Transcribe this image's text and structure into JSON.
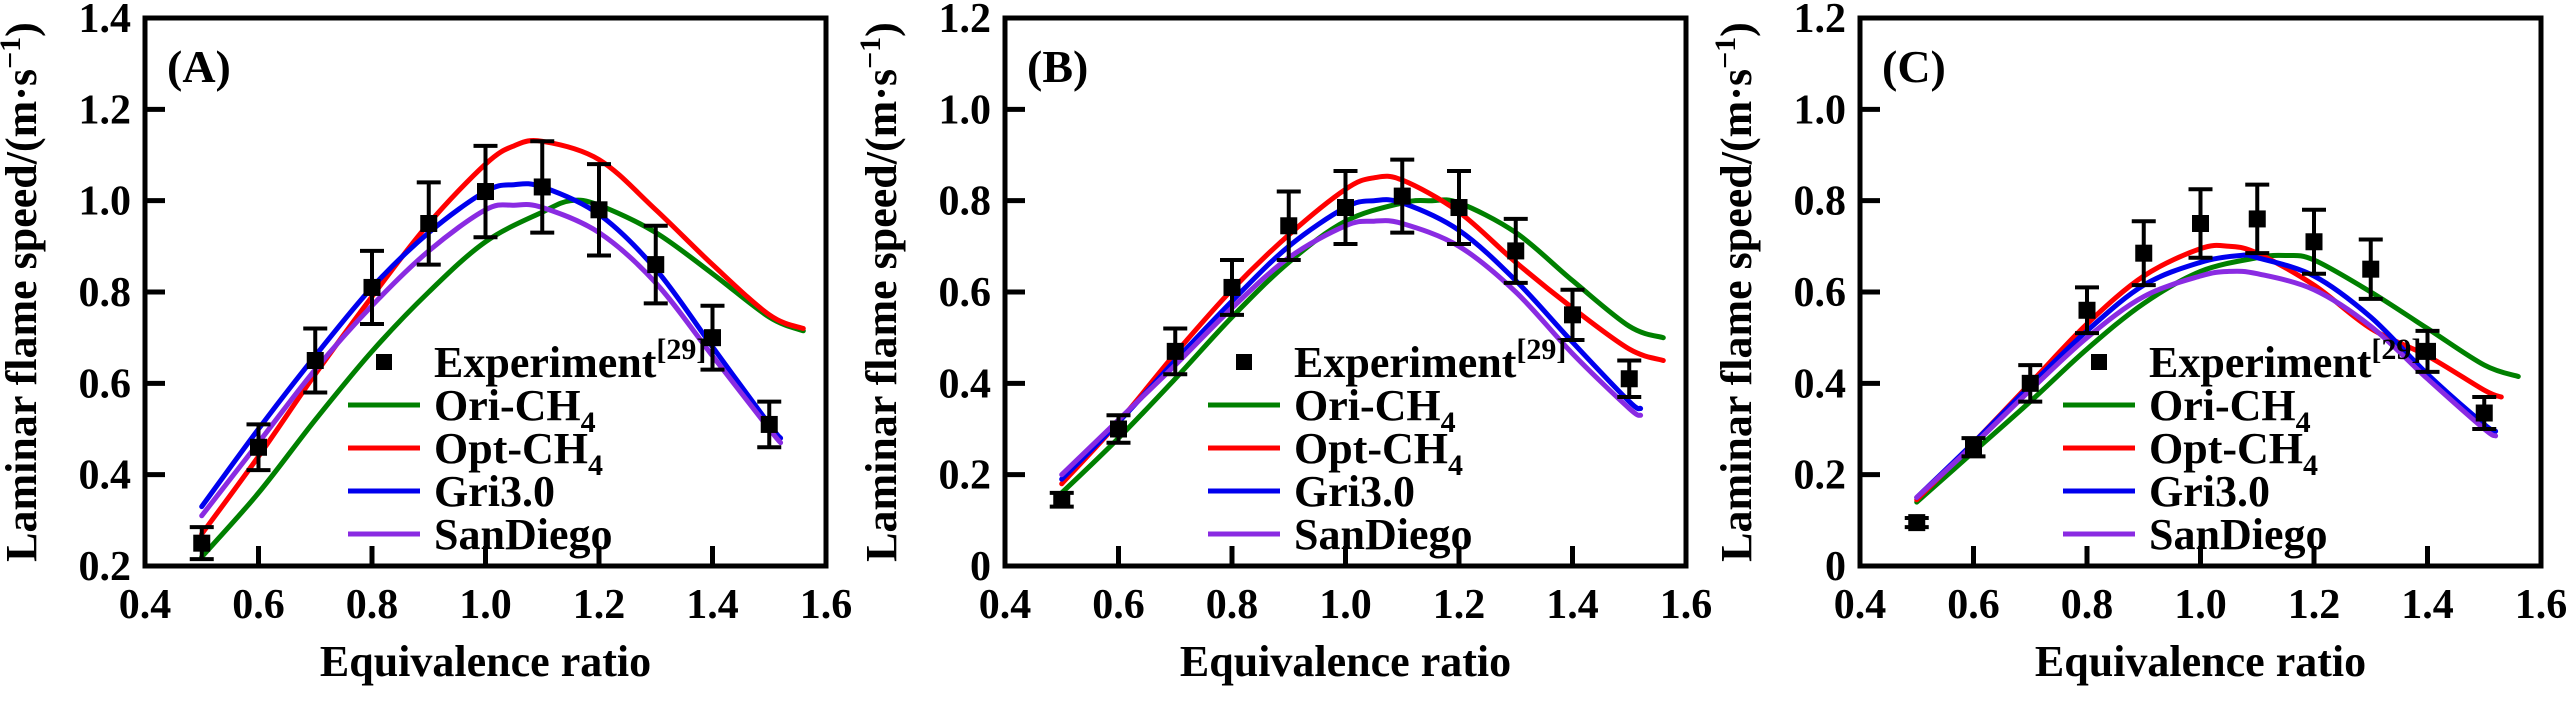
{
  "figure_title": "",
  "colors": {
    "experiment": "#000000",
    "ori": "#008000",
    "opt": "#ff0000",
    "gri": "#0000ee",
    "san": "#8a2be2",
    "axis": "#000000",
    "background": "#ffffff"
  },
  "chart_data": [
    {
      "type": "line",
      "panel_label": "(A)",
      "xlabel": "Equivalence ratio",
      "ylabel": "Laminar flame speed/(m·s⁻¹)",
      "ylabel_parts": {
        "base": "Laminar flame speed/(m·s",
        "sup": "−1",
        "end": ")"
      },
      "xlim": [
        0.4,
        1.6
      ],
      "ylim": [
        0.2,
        1.4
      ],
      "grid": false,
      "legend_position": "inside-lower-middle",
      "xticks": {
        "values": [
          0.4,
          0.6,
          0.8,
          1.0,
          1.2,
          1.4,
          1.6
        ],
        "labels": [
          "0.4",
          "0.6",
          "0.8",
          "1.0",
          "1.2",
          "1.4",
          "1.6"
        ]
      },
      "yticks": {
        "values": [
          0.2,
          0.4,
          0.6,
          0.8,
          1.0,
          1.2,
          1.4
        ],
        "labels": [
          "0.2",
          "0.4",
          "0.6",
          "0.8",
          "1.0",
          "1.2",
          "1.4"
        ]
      },
      "experiment": {
        "name": "Experiment",
        "ref_sup": "[29]",
        "x": [
          0.5,
          0.6,
          0.7,
          0.8,
          0.9,
          1.0,
          1.1,
          1.2,
          1.3,
          1.4,
          1.5
        ],
        "y": [
          0.25,
          0.46,
          0.65,
          0.81,
          0.95,
          1.02,
          1.03,
          0.98,
          0.86,
          0.7,
          0.51
        ],
        "yerr": [
          0.035,
          0.05,
          0.07,
          0.08,
          0.09,
          0.1,
          0.1,
          0.1,
          0.085,
          0.07,
          0.05
        ]
      },
      "series": [
        {
          "id": "ori",
          "name": "Ori-CH4",
          "color": "#008000",
          "x": [
            0.5,
            0.6,
            0.7,
            0.8,
            0.9,
            1.0,
            1.1,
            1.15,
            1.2,
            1.3,
            1.4,
            1.5,
            1.56
          ],
          "y": [
            0.22,
            0.36,
            0.52,
            0.67,
            0.8,
            0.91,
            0.975,
            1.0,
            0.99,
            0.93,
            0.84,
            0.745,
            0.715
          ]
        },
        {
          "id": "opt",
          "name": "Opt-CH4",
          "color": "#ff0000",
          "x": [
            0.5,
            0.6,
            0.7,
            0.8,
            0.9,
            1.0,
            1.05,
            1.1,
            1.2,
            1.3,
            1.4,
            1.5,
            1.56
          ],
          "y": [
            0.27,
            0.44,
            0.62,
            0.79,
            0.95,
            1.08,
            1.12,
            1.13,
            1.09,
            0.98,
            0.86,
            0.75,
            0.72
          ]
        },
        {
          "id": "gri",
          "name": "Gri3.0",
          "color": "#0000ee",
          "x": [
            0.5,
            0.6,
            0.7,
            0.8,
            0.9,
            1.0,
            1.05,
            1.1,
            1.2,
            1.3,
            1.4,
            1.5,
            1.52
          ],
          "y": [
            0.33,
            0.5,
            0.66,
            0.81,
            0.93,
            1.02,
            1.035,
            1.03,
            0.97,
            0.85,
            0.68,
            0.51,
            0.48
          ]
        },
        {
          "id": "san",
          "name": "SanDiego",
          "color": "#8a2be2",
          "x": [
            0.5,
            0.6,
            0.7,
            0.8,
            0.9,
            1.0,
            1.05,
            1.1,
            1.2,
            1.3,
            1.4,
            1.5,
            1.52
          ],
          "y": [
            0.31,
            0.47,
            0.63,
            0.77,
            0.89,
            0.98,
            0.99,
            0.985,
            0.93,
            0.82,
            0.66,
            0.5,
            0.47
          ]
        }
      ],
      "legend": [
        {
          "swatch": "square",
          "color": "#000000",
          "base": "Experiment",
          "sup": "[29]"
        },
        {
          "swatch": "line",
          "color": "#008000",
          "base": "Ori-CH",
          "sub": "4"
        },
        {
          "swatch": "line",
          "color": "#ff0000",
          "base": "Opt-CH",
          "sub": "4"
        },
        {
          "swatch": "line",
          "color": "#0000ee",
          "base": "Gri3.0"
        },
        {
          "swatch": "line",
          "color": "#8a2be2",
          "base": "SanDiego"
        }
      ]
    },
    {
      "type": "line",
      "panel_label": "(B)",
      "xlabel": "Equivalence ratio",
      "ylabel": "Laminar flame speed/(m·s⁻¹)",
      "ylabel_parts": {
        "base": "Laminar flame speed/(m·s",
        "sup": "−1",
        "end": ")"
      },
      "xlim": [
        0.4,
        1.6
      ],
      "ylim": [
        0,
        1.2
      ],
      "grid": false,
      "legend_position": "inside-lower-middle",
      "xticks": {
        "values": [
          0.4,
          0.6,
          0.8,
          1.0,
          1.2,
          1.4,
          1.6
        ],
        "labels": [
          "0.4",
          "0.6",
          "0.8",
          "1.0",
          "1.2",
          "1.4",
          "1.6"
        ]
      },
      "yticks": {
        "values": [
          0,
          0.2,
          0.4,
          0.6,
          0.8,
          1.0,
          1.2
        ],
        "labels": [
          "0",
          "0.2",
          "0.4",
          "0.6",
          "0.8",
          "1.0",
          "1.2"
        ]
      },
      "experiment": {
        "name": "Experiment",
        "ref_sup": "[29]",
        "x": [
          0.5,
          0.6,
          0.7,
          0.8,
          0.9,
          1.0,
          1.1,
          1.2,
          1.3,
          1.4,
          1.5
        ],
        "y": [
          0.145,
          0.3,
          0.47,
          0.61,
          0.745,
          0.785,
          0.81,
          0.785,
          0.69,
          0.55,
          0.41
        ],
        "yerr": [
          0.015,
          0.03,
          0.05,
          0.06,
          0.075,
          0.08,
          0.08,
          0.08,
          0.07,
          0.055,
          0.04
        ]
      },
      "series": [
        {
          "id": "ori",
          "name": "Ori-CH4",
          "color": "#008000",
          "x": [
            0.5,
            0.6,
            0.7,
            0.8,
            0.9,
            1.0,
            1.1,
            1.15,
            1.2,
            1.3,
            1.4,
            1.5,
            1.56
          ],
          "y": [
            0.16,
            0.28,
            0.41,
            0.545,
            0.665,
            0.755,
            0.795,
            0.8,
            0.795,
            0.73,
            0.625,
            0.525,
            0.5
          ]
        },
        {
          "id": "opt",
          "name": "Opt-CH4",
          "color": "#ff0000",
          "x": [
            0.5,
            0.6,
            0.7,
            0.8,
            0.9,
            1.0,
            1.05,
            1.1,
            1.2,
            1.3,
            1.4,
            1.5,
            1.56
          ],
          "y": [
            0.18,
            0.315,
            0.465,
            0.605,
            0.725,
            0.825,
            0.85,
            0.845,
            0.775,
            0.665,
            0.565,
            0.475,
            0.45
          ]
        },
        {
          "id": "gri",
          "name": "Gri3.0",
          "color": "#0000ee",
          "x": [
            0.5,
            0.6,
            0.7,
            0.8,
            0.9,
            1.0,
            1.05,
            1.1,
            1.2,
            1.3,
            1.4,
            1.5,
            1.52
          ],
          "y": [
            0.19,
            0.315,
            0.45,
            0.58,
            0.7,
            0.785,
            0.8,
            0.795,
            0.735,
            0.625,
            0.49,
            0.36,
            0.345
          ]
        },
        {
          "id": "san",
          "name": "SanDiego",
          "color": "#8a2be2",
          "x": [
            0.5,
            0.6,
            0.7,
            0.8,
            0.9,
            1.0,
            1.05,
            1.1,
            1.2,
            1.3,
            1.4,
            1.5,
            1.52
          ],
          "y": [
            0.2,
            0.32,
            0.44,
            0.565,
            0.675,
            0.745,
            0.755,
            0.75,
            0.7,
            0.6,
            0.465,
            0.345,
            0.33
          ]
        }
      ],
      "legend": [
        {
          "swatch": "square",
          "color": "#000000",
          "base": "Experiment",
          "sup": "[29]"
        },
        {
          "swatch": "line",
          "color": "#008000",
          "base": "Ori-CH",
          "sub": "4"
        },
        {
          "swatch": "line",
          "color": "#ff0000",
          "base": "Opt-CH",
          "sub": "4"
        },
        {
          "swatch": "line",
          "color": "#0000ee",
          "base": "Gri3.0"
        },
        {
          "swatch": "line",
          "color": "#8a2be2",
          "base": "SanDiego"
        }
      ]
    },
    {
      "type": "line",
      "panel_label": "(C)",
      "xlabel": "Equivalence ratio",
      "ylabel": "Laminar flame speed/(m·s⁻¹)",
      "ylabel_parts": {
        "base": "Laminar flame speed/(m·s",
        "sup": "−1",
        "end": ")"
      },
      "xlim": [
        0.4,
        1.6
      ],
      "ylim": [
        0,
        1.2
      ],
      "grid": false,
      "legend_position": "inside-lower-middle",
      "xticks": {
        "values": [
          0.4,
          0.6,
          0.8,
          1.0,
          1.2,
          1.4,
          1.6
        ],
        "labels": [
          "0.4",
          "0.6",
          "0.8",
          "1.0",
          "1.2",
          "1.4",
          "1.6"
        ]
      },
      "yticks": {
        "values": [
          0,
          0.2,
          0.4,
          0.6,
          0.8,
          1.0,
          1.2
        ],
        "labels": [
          "0",
          "0.2",
          "0.4",
          "0.6",
          "0.8",
          "1.0",
          "1.2"
        ]
      },
      "experiment": {
        "name": "Experiment",
        "ref_sup": "[29]",
        "x": [
          0.5,
          0.6,
          0.7,
          0.8,
          0.9,
          1.0,
          1.1,
          1.2,
          1.3,
          1.4,
          1.5
        ],
        "y": [
          0.095,
          0.26,
          0.4,
          0.56,
          0.685,
          0.75,
          0.76,
          0.71,
          0.65,
          0.47,
          0.335
        ],
        "yerr": [
          0.01,
          0.02,
          0.04,
          0.05,
          0.07,
          0.075,
          0.075,
          0.07,
          0.065,
          0.045,
          0.035
        ]
      },
      "series": [
        {
          "id": "ori",
          "name": "Ori-CH4",
          "color": "#008000",
          "x": [
            0.5,
            0.6,
            0.7,
            0.8,
            0.9,
            1.0,
            1.1,
            1.15,
            1.2,
            1.3,
            1.4,
            1.5,
            1.56
          ],
          "y": [
            0.14,
            0.25,
            0.36,
            0.475,
            0.575,
            0.645,
            0.675,
            0.68,
            0.67,
            0.6,
            0.52,
            0.44,
            0.415
          ]
        },
        {
          "id": "opt",
          "name": "Opt-CH4",
          "color": "#ff0000",
          "x": [
            0.5,
            0.6,
            0.7,
            0.8,
            0.9,
            1.0,
            1.05,
            1.1,
            1.2,
            1.3,
            1.4,
            1.5,
            1.53
          ],
          "y": [
            0.145,
            0.27,
            0.4,
            0.53,
            0.635,
            0.695,
            0.7,
            0.685,
            0.615,
            0.52,
            0.46,
            0.385,
            0.37
          ]
        },
        {
          "id": "gri",
          "name": "Gri3.0",
          "color": "#0000ee",
          "x": [
            0.5,
            0.6,
            0.7,
            0.8,
            0.9,
            1.0,
            1.07,
            1.1,
            1.2,
            1.3,
            1.4,
            1.5,
            1.52
          ],
          "y": [
            0.15,
            0.27,
            0.395,
            0.515,
            0.615,
            0.665,
            0.68,
            0.675,
            0.635,
            0.545,
            0.42,
            0.31,
            0.295
          ]
        },
        {
          "id": "san",
          "name": "SanDiego",
          "color": "#8a2be2",
          "x": [
            0.5,
            0.6,
            0.7,
            0.8,
            0.9,
            1.0,
            1.05,
            1.1,
            1.2,
            1.3,
            1.4,
            1.5,
            1.52
          ],
          "y": [
            0.15,
            0.265,
            0.385,
            0.5,
            0.59,
            0.635,
            0.645,
            0.64,
            0.605,
            0.525,
            0.41,
            0.3,
            0.285
          ]
        }
      ],
      "legend": [
        {
          "swatch": "square",
          "color": "#000000",
          "base": "Experiment",
          "sup": "[29]"
        },
        {
          "swatch": "line",
          "color": "#008000",
          "base": "Ori-CH",
          "sub": "4"
        },
        {
          "swatch": "line",
          "color": "#ff0000",
          "base": "Opt-CH",
          "sub": "4"
        },
        {
          "swatch": "line",
          "color": "#0000ee",
          "base": "Gri3.0"
        },
        {
          "swatch": "line",
          "color": "#8a2be2",
          "base": "SanDiego"
        }
      ]
    }
  ]
}
